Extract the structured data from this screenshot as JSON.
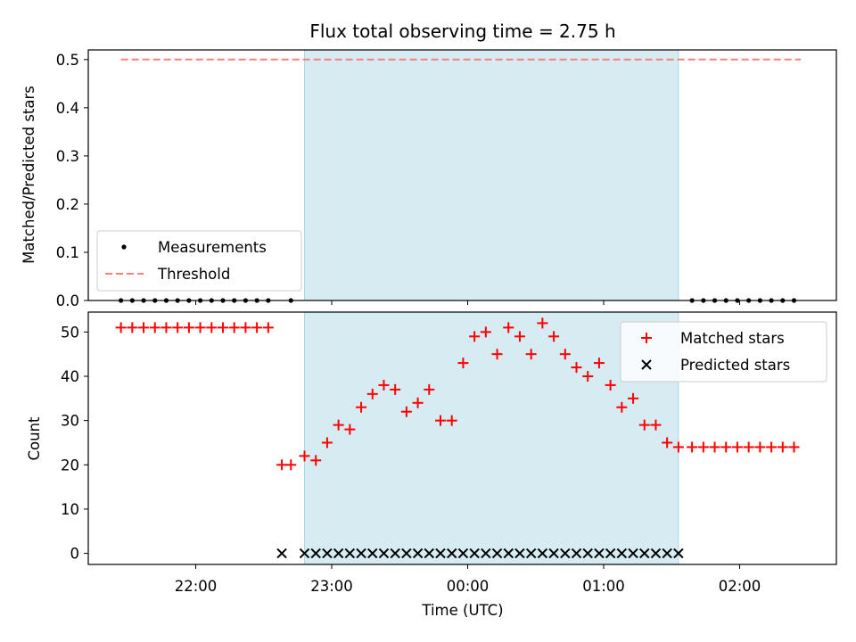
{
  "title": "Flux total observing time = 2.75 h",
  "colors": {
    "shade": "#add8e6",
    "matched": "#ff0000",
    "predicted": "#000000",
    "threshold": "#ff7f7f",
    "measurements": "#000000"
  },
  "chart_data": [
    {
      "type": "scatter",
      "ylabel": "Matched/Predicted stars",
      "xlabel": "",
      "ylim": [
        0.0,
        0.52
      ],
      "yticks": [
        0.0,
        0.1,
        0.2,
        0.3,
        0.4,
        0.5
      ],
      "ytick_labels": [
        "0.0",
        "0.1",
        "0.2",
        "0.3",
        "0.4",
        "0.5"
      ],
      "shaded_span": [
        "22:48",
        "01:33"
      ],
      "threshold": {
        "name": "Threshold",
        "value": 0.5,
        "x_range": [
          "21:27",
          "02:27"
        ]
      },
      "series": [
        {
          "name": "Measurements",
          "marker": "dot",
          "x": [
            "21:27",
            "21:32",
            "21:37",
            "21:42",
            "21:47",
            "21:52",
            "21:57",
            "22:02",
            "22:07",
            "22:12",
            "22:17",
            "22:22",
            "22:27",
            "22:32",
            "22:42",
            "01:39",
            "01:44",
            "01:49",
            "01:54",
            "01:59",
            "02:04",
            "02:09",
            "02:14",
            "02:19",
            "02:24"
          ],
          "y": [
            0,
            0,
            0,
            0,
            0,
            0,
            0,
            0,
            0,
            0,
            0,
            0,
            0,
            0,
            0,
            0,
            0,
            0,
            0,
            0,
            0,
            0,
            0,
            0,
            0
          ]
        }
      ],
      "legend": [
        "Measurements",
        "Threshold"
      ],
      "legend_position": "lower-left"
    },
    {
      "type": "scatter",
      "xlabel": "Time (UTC)",
      "ylabel": "Count",
      "ylim": [
        -2.5,
        54.5
      ],
      "yticks": [
        0,
        10,
        20,
        30,
        40,
        50
      ],
      "ytick_labels": [
        "0",
        "10",
        "20",
        "30",
        "40",
        "50"
      ],
      "xticks": [
        "22:00",
        "23:00",
        "00:00",
        "01:00",
        "02:00"
      ],
      "xtick_labels": [
        "22:00",
        "23:00",
        "00:00",
        "01:00",
        "02:00"
      ],
      "shaded_span": [
        "22:48",
        "01:33"
      ],
      "series": [
        {
          "name": "Matched stars",
          "marker": "plus",
          "x": [
            "21:27",
            "21:32",
            "21:37",
            "21:42",
            "21:47",
            "21:52",
            "21:57",
            "22:02",
            "22:07",
            "22:12",
            "22:17",
            "22:22",
            "22:27",
            "22:32",
            "22:38",
            "22:42",
            "22:48",
            "22:53",
            "22:58",
            "23:03",
            "23:08",
            "23:13",
            "23:18",
            "23:23",
            "23:28",
            "23:33",
            "23:38",
            "23:43",
            "23:48",
            "23:53",
            "23:58",
            "00:03",
            "00:08",
            "00:13",
            "00:18",
            "00:23",
            "00:28",
            "00:33",
            "00:38",
            "00:43",
            "00:48",
            "00:53",
            "00:58",
            "01:03",
            "01:08",
            "01:13",
            "01:18",
            "01:23",
            "01:28",
            "01:33",
            "01:39",
            "01:44",
            "01:49",
            "01:54",
            "01:59",
            "02:04",
            "02:09",
            "02:14",
            "02:19",
            "02:24"
          ],
          "y": [
            51,
            51,
            51,
            51,
            51,
            51,
            51,
            51,
            51,
            51,
            51,
            51,
            51,
            51,
            20,
            20,
            22,
            21,
            25,
            29,
            28,
            33,
            36,
            38,
            37,
            32,
            34,
            37,
            30,
            30,
            43,
            49,
            50,
            45,
            51,
            49,
            45,
            52,
            49,
            45,
            42,
            40,
            43,
            38,
            33,
            35,
            29,
            29,
            25,
            24,
            24,
            24,
            24,
            24,
            24,
            24,
            24,
            24,
            24,
            24
          ]
        },
        {
          "name": "Predicted stars",
          "marker": "x",
          "x": [
            "22:38",
            "22:48",
            "22:53",
            "22:58",
            "23:03",
            "23:08",
            "23:13",
            "23:18",
            "23:23",
            "23:28",
            "23:33",
            "23:38",
            "23:43",
            "23:48",
            "23:53",
            "23:58",
            "00:03",
            "00:08",
            "00:13",
            "00:18",
            "00:23",
            "00:28",
            "00:33",
            "00:38",
            "00:43",
            "00:48",
            "00:53",
            "00:58",
            "01:03",
            "01:08",
            "01:13",
            "01:18",
            "01:23",
            "01:28",
            "01:33"
          ],
          "y": [
            0,
            0,
            0,
            0,
            0,
            0,
            0,
            0,
            0,
            0,
            0,
            0,
            0,
            0,
            0,
            0,
            0,
            0,
            0,
            0,
            0,
            0,
            0,
            0,
            0,
            0,
            0,
            0,
            0,
            0,
            0,
            0,
            0,
            0,
            0
          ]
        }
      ],
      "legend": [
        "Matched stars",
        "Predicted stars"
      ],
      "legend_position": "upper-right"
    }
  ]
}
